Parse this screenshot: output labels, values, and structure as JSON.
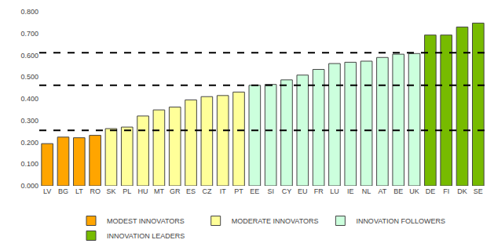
{
  "chart_data": {
    "type": "bar",
    "categories": [
      "LV",
      "BG",
      "LT",
      "RO",
      "SK",
      "PL",
      "HU",
      "MT",
      "GR",
      "ES",
      "CZ",
      "IT",
      "PT",
      "EE",
      "SI",
      "CY",
      "EU",
      "FR",
      "LU",
      "IE",
      "NL",
      "AT",
      "BE",
      "UK",
      "DE",
      "FI",
      "DK",
      "SE"
    ],
    "series": [
      {
        "name": "MODEST INNOVATORS",
        "color": "#FFA500",
        "values": [
          0.194,
          0.224,
          0.221,
          0.232,
          null,
          null,
          null,
          null,
          null,
          null,
          null,
          null,
          null,
          null,
          null,
          null,
          null,
          null,
          null,
          null,
          null,
          null,
          null,
          null,
          null,
          null,
          null,
          null
        ]
      },
      {
        "name": "MODERATE INNOVATORS",
        "color": "#FFFF99",
        "values": [
          null,
          null,
          null,
          null,
          0.263,
          0.27,
          0.321,
          0.349,
          0.362,
          0.395,
          0.41,
          0.415,
          0.431,
          null,
          null,
          null,
          null,
          null,
          null,
          null,
          null,
          null,
          null,
          null,
          null,
          null,
          null,
          null
        ]
      },
      {
        "name": "INNOVATION FOLLOWERS",
        "color": "#CCFFDD",
        "values": [
          null,
          null,
          null,
          null,
          null,
          null,
          null,
          null,
          null,
          null,
          null,
          null,
          null,
          0.462,
          0.466,
          0.487,
          0.509,
          0.535,
          0.562,
          0.568,
          0.573,
          0.59,
          0.605,
          0.608,
          null,
          null,
          null,
          null
        ]
      },
      {
        "name": "INNOVATION LEADERS",
        "color": "#77BB00",
        "values": [
          null,
          null,
          null,
          null,
          null,
          null,
          null,
          null,
          null,
          null,
          null,
          null,
          null,
          null,
          null,
          null,
          null,
          null,
          null,
          null,
          null,
          null,
          null,
          null,
          0.693,
          0.693,
          0.73,
          0.748
        ]
      }
    ],
    "hlines": [
      0.255,
      0.462,
      0.612
    ],
    "line_style": "dash",
    "ylim": [
      0.0,
      0.8
    ],
    "yticks": [
      {
        "value": 0.0,
        "label": "0.000"
      },
      {
        "value": 0.1,
        "label": "0.100"
      },
      {
        "value": 0.2,
        "label": "0.200"
      },
      {
        "value": 0.3,
        "label": "0.300"
      },
      {
        "value": 0.4,
        "label": "0.400"
      },
      {
        "value": 0.5,
        "label": "0.500"
      },
      {
        "value": 0.6,
        "label": "0.600"
      },
      {
        "value": 0.7,
        "label": "0.700"
      },
      {
        "value": 0.8,
        "label": "0.800"
      }
    ],
    "grid": false,
    "legend": "bottom"
  }
}
